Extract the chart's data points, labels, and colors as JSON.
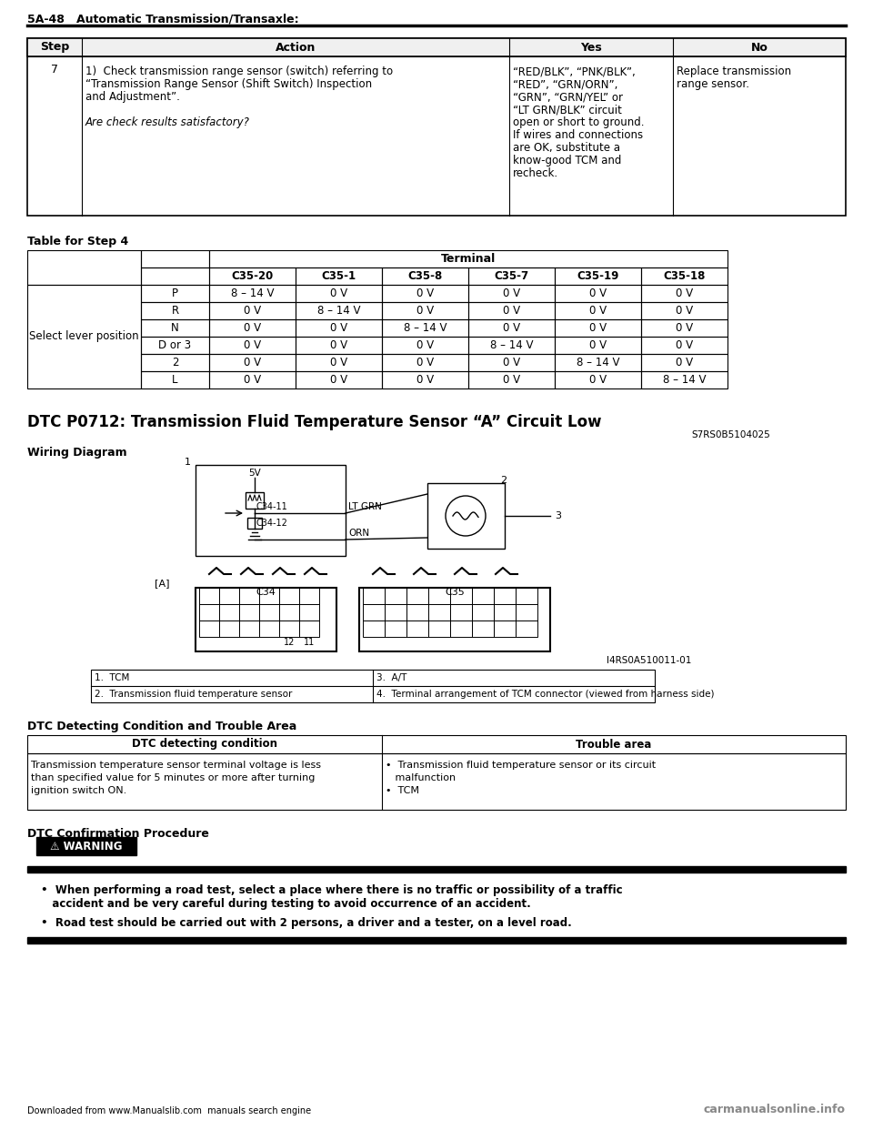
{
  "page_header": "5A-48   Automatic Transmission/Transaxle:",
  "bg_color": "#ffffff",
  "text_color": "#000000",
  "step_table": {
    "headers": [
      "Step",
      "Action",
      "Yes",
      "No"
    ],
    "row": {
      "step": "7",
      "action_lines": [
        "1)  Check transmission range sensor (switch) referring to",
        "“Transmission Range Sensor (Shift Switch) Inspection",
        "and Adjustment”.",
        "",
        "Are check results satisfactory?"
      ],
      "action_italic_index": 4,
      "yes_lines": [
        "“RED/BLK”, “PNK/BLK”,",
        "“RED”, “GRN/ORN”,",
        "“GRN”, “GRN/YEL” or",
        "“LT GRN/BLK” circuit",
        "open or short to ground.",
        "If wires and connections",
        "are OK, substitute a",
        "know-good TCM and",
        "recheck."
      ],
      "no_lines": [
        "Replace transmission",
        "range sensor."
      ]
    }
  },
  "table_for_step4_title": "Table for Step 4",
  "terminal_table": {
    "group_header": "Terminal",
    "row_group": "Select lever position",
    "sub_headers": [
      "C35-20",
      "C35-1",
      "C35-8",
      "C35-7",
      "C35-19",
      "C35-18"
    ],
    "rows": [
      [
        "P",
        "8 – 14 V",
        "0 V",
        "0 V",
        "0 V",
        "0 V",
        "0 V"
      ],
      [
        "R",
        "0 V",
        "8 – 14 V",
        "0 V",
        "0 V",
        "0 V",
        "0 V"
      ],
      [
        "N",
        "0 V",
        "0 V",
        "8 – 14 V",
        "0 V",
        "0 V",
        "0 V"
      ],
      [
        "D or 3",
        "0 V",
        "0 V",
        "0 V",
        "8 – 14 V",
        "0 V",
        "0 V"
      ],
      [
        "2",
        "0 V",
        "0 V",
        "0 V",
        "0 V",
        "8 – 14 V",
        "0 V"
      ],
      [
        "L",
        "0 V",
        "0 V",
        "0 V",
        "0 V",
        "0 V",
        "8 – 14 V"
      ]
    ]
  },
  "dtc_title": "DTC P0712: Transmission Fluid Temperature Sensor “A” Circuit Low",
  "dtc_code": "S7RS0B5104025",
  "wiring_diagram_title": "Wiring Diagram",
  "figure_label": "I4RS0A510011-01",
  "legend_items": [
    [
      "1.  TCM",
      "3.  A/T"
    ],
    [
      "2.  Transmission fluid temperature sensor",
      "4.  Terminal arrangement of TCM connector (viewed from harness side)"
    ]
  ],
  "dtc_condition_title": "DTC Detecting Condition and Trouble Area",
  "dtc_condition_table": {
    "headers": [
      "DTC detecting condition",
      "Trouble area"
    ],
    "condition_lines": [
      "Transmission temperature sensor terminal voltage is less",
      "than specified value for 5 minutes or more after turning",
      "ignition switch ON."
    ],
    "trouble_lines": [
      "•  Transmission fluid temperature sensor or its circuit",
      "   malfunction",
      "•  TCM"
    ]
  },
  "dtc_confirmation_title": "DTC Confirmation Procedure",
  "warning_label": "⚠ WARNING",
  "warning_bullets": [
    [
      "•  When performing a road test, select a place where there is no traffic or possibility of a traffic",
      "   accident and be very careful during testing to avoid occurrence of an accident."
    ],
    [
      "•  Road test should be carried out with 2 persons, a driver and a tester, on a level road."
    ]
  ],
  "footer_left": "Downloaded from www.Manualslib.com  manuals search engine",
  "footer_right": "carmanualsonline.info",
  "footer_url": "www.Manualslib.com"
}
